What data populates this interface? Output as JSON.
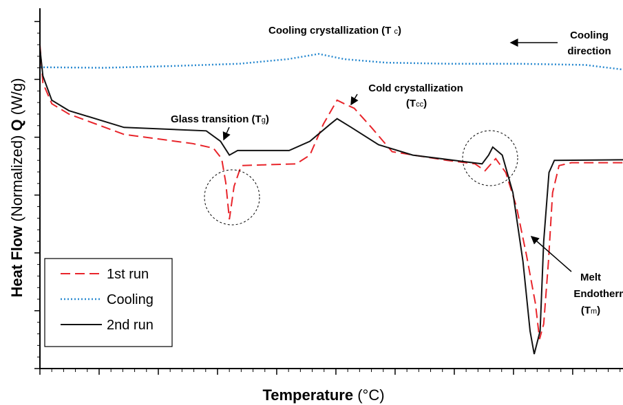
{
  "chart_data": {
    "type": "line",
    "x_label_parts": [
      "Temperature",
      " (°C)"
    ],
    "y_label_parts": [
      "Heat Flow",
      " (Normalized) ",
      "Q",
      " (W/g)"
    ],
    "xlim": [
      0,
      9.85
    ],
    "ylim": [
      0,
      6.23
    ],
    "xticks": [
      0,
      1,
      2,
      3,
      4,
      5,
      6,
      7,
      8,
      9
    ],
    "yticks": [
      0,
      1,
      2,
      3,
      4,
      5,
      6
    ],
    "tick_labels": false,
    "minor_ticks_per_major": 5,
    "series": [
      {
        "name": "1st run",
        "color": "#e8242a",
        "dash": "dashed",
        "x": [
          0,
          0.05,
          0.2,
          0.49,
          1.42,
          2.58,
          2.93,
          3.07,
          3.14,
          3.2,
          3.28,
          3.4,
          4.33,
          4.56,
          4.79,
          5.02,
          5.14,
          5.31,
          5.6,
          5.95,
          6.88,
          7.35,
          7.52,
          7.7,
          7.87,
          8.05,
          8.22,
          8.37,
          8.44,
          8.51,
          8.59,
          8.66,
          8.77,
          8.98,
          9.85
        ],
        "values": [
          5.6,
          4.94,
          4.58,
          4.4,
          4.05,
          3.89,
          3.81,
          3.63,
          3.21,
          2.58,
          3.15,
          3.51,
          3.54,
          3.69,
          4.23,
          4.64,
          4.58,
          4.5,
          4.17,
          3.75,
          3.6,
          3.54,
          3.42,
          3.63,
          3.39,
          2.8,
          1.96,
          1.13,
          0.51,
          0.77,
          1.85,
          3.04,
          3.51,
          3.56,
          3.56
        ]
      },
      {
        "name": "Cooling",
        "color": "#2a8ad0",
        "dash": "dotted",
        "x": [
          0,
          1.07,
          2.21,
          3.37,
          4.19,
          4.71,
          5.14,
          5.84,
          6.88,
          8.05,
          9.21,
          9.85
        ],
        "values": [
          5.21,
          5.2,
          5.23,
          5.27,
          5.35,
          5.44,
          5.35,
          5.29,
          5.27,
          5.27,
          5.25,
          5.17
        ]
      },
      {
        "name": "2nd run",
        "color": "#111111",
        "dash": "solid",
        "x": [
          0,
          0.05,
          0.2,
          0.49,
          1.42,
          2.81,
          3.05,
          3.2,
          3.34,
          4.21,
          4.56,
          4.91,
          5.02,
          5.26,
          5.72,
          6.3,
          7.23,
          7.47,
          7.58,
          7.65,
          7.81,
          7.99,
          8.16,
          8.28,
          8.35,
          8.45,
          8.51,
          8.6,
          8.69,
          9.85
        ],
        "values": [
          5.54,
          5.06,
          4.64,
          4.46,
          4.17,
          4.11,
          3.93,
          3.69,
          3.77,
          3.77,
          3.93,
          4.23,
          4.32,
          4.17,
          3.87,
          3.69,
          3.57,
          3.54,
          3.69,
          3.83,
          3.69,
          3.04,
          1.85,
          0.65,
          0.25,
          0.65,
          2.2,
          3.39,
          3.6,
          3.61
        ]
      }
    ],
    "annotations": [
      {
        "parts": [
          "Cooling crystallization (T ",
          "c",
          ")"
        ]
      },
      {
        "parts": [
          "Cooling"
        ]
      },
      {
        "parts": [
          "direction"
        ]
      },
      {
        "parts": [
          "Cold crystallization"
        ]
      },
      {
        "parts": [
          "(T",
          "cc",
          ")"
        ]
      },
      {
        "parts": [
          "Glass transition (T",
          "g",
          ")"
        ]
      },
      {
        "parts": [
          "Melt"
        ]
      },
      {
        "parts": [
          "Endotherm"
        ]
      },
      {
        "parts": [
          "(T",
          "m",
          ")"
        ]
      }
    ]
  }
}
